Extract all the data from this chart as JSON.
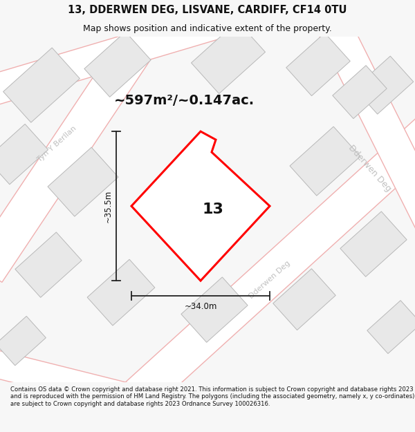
{
  "title_line1": "13, DDERWEN DEG, LISVANE, CARDIFF, CF14 0TU",
  "title_line2": "Map shows position and indicative extent of the property.",
  "area_text": "~597m²/~0.147ac.",
  "width_label": "~34.0m",
  "height_label": "~35.5m",
  "property_number": "13",
  "footer_text": "Contains OS data © Crown copyright and database right 2021. This information is subject to Crown copyright and database rights 2023 and is reproduced with the permission of HM Land Registry. The polygons (including the associated geometry, namely x, y co-ordinates) are subject to Crown copyright and database rights 2023 Ordnance Survey 100026316.",
  "bg_color": "#f7f7f7",
  "map_bg": "#ffffff",
  "road_outline_color": "#f0b0b0",
  "road_fill_color": "#ffffff",
  "building_color": "#e8e8e8",
  "building_edge": "#b8b8b8",
  "property_color": "#ffffff",
  "property_edge": "#ff0000",
  "dim_line_color": "#222222",
  "text_color": "#111111",
  "street_text_color": "#c0c0c0",
  "title_fontsize": 10.5,
  "subtitle_fontsize": 9,
  "area_fontsize": 14,
  "dim_fontsize": 8.5,
  "prop_num_fontsize": 16,
  "street_fontsize": 8
}
